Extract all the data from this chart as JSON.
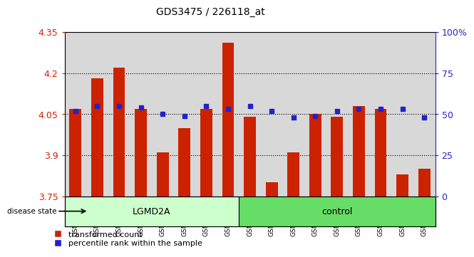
{
  "title": "GDS3475 / 226118_at",
  "samples": [
    "GSM296738",
    "GSM296742",
    "GSM296747",
    "GSM296748",
    "GSM296751",
    "GSM296752",
    "GSM296753",
    "GSM296754",
    "GSM296739",
    "GSM296740",
    "GSM296741",
    "GSM296743",
    "GSM296744",
    "GSM296745",
    "GSM296746",
    "GSM296749",
    "GSM296750"
  ],
  "bar_values": [
    4.07,
    4.18,
    4.22,
    4.07,
    3.91,
    4.0,
    4.07,
    4.31,
    4.04,
    3.8,
    3.91,
    4.05,
    4.04,
    4.08,
    4.07,
    3.83,
    3.85
  ],
  "percentile_pct": [
    52,
    55,
    55,
    54,
    50,
    49,
    55,
    53,
    55,
    52,
    48,
    49,
    52,
    53,
    53,
    53,
    48
  ],
  "bar_color": "#cc2200",
  "percentile_color": "#2222cc",
  "ylim_left": [
    3.75,
    4.35
  ],
  "ylim_right": [
    0,
    100
  ],
  "yticks_left": [
    3.75,
    3.9,
    4.05,
    4.2,
    4.35
  ],
  "yticks_right": [
    0,
    25,
    50,
    75,
    100
  ],
  "ytick_labels_right": [
    "0",
    "25",
    "50",
    "75",
    "100%"
  ],
  "grid_values": [
    3.9,
    4.05,
    4.2
  ],
  "disease_groups": [
    {
      "label": "LGMD2A",
      "start": 0,
      "end": 8,
      "color": "#ccffcc"
    },
    {
      "label": "control",
      "start": 8,
      "end": 17,
      "color": "#66dd66"
    }
  ],
  "disease_state_label": "disease state",
  "legend_bar_label": "transformed count",
  "legend_pct_label": "percentile rank within the sample",
  "bar_width": 0.55,
  "background_color": "#d8d8d8"
}
